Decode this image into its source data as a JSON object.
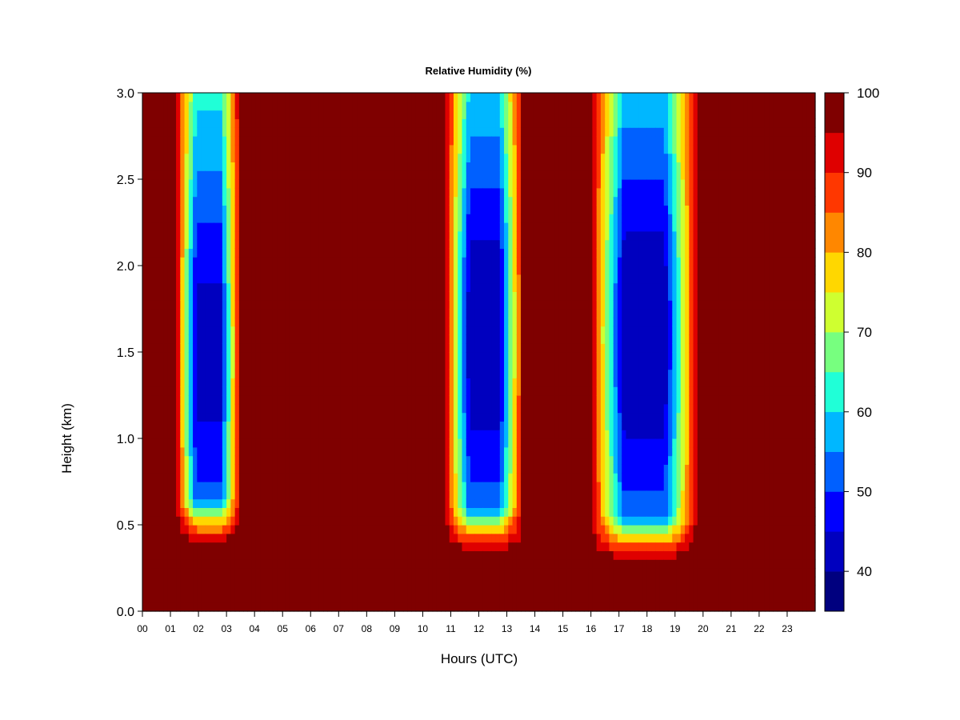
{
  "chart_data": {
    "type": "heatmap",
    "title": "Relative Humidity (%)",
    "xlabel": "Hours (UTC)",
    "ylabel": "Height (km)",
    "xlim": [
      0,
      24
    ],
    "ylim": [
      0.0,
      3.0
    ],
    "x_ticks": [
      "00",
      "01",
      "02",
      "03",
      "04",
      "05",
      "06",
      "07",
      "08",
      "09",
      "10",
      "11",
      "12",
      "13",
      "14",
      "15",
      "16",
      "17",
      "18",
      "19",
      "20",
      "21",
      "22",
      "23"
    ],
    "y_ticks": [
      "0.0",
      "0.5",
      "1.0",
      "1.5",
      "2.0",
      "2.5",
      "3.0"
    ],
    "colorbar": {
      "label_values": [
        "40",
        "50",
        "60",
        "70",
        "80",
        "90",
        "100"
      ],
      "levels": [
        35,
        40,
        45,
        50,
        55,
        60,
        65,
        70,
        75,
        80,
        85,
        90,
        95,
        100
      ],
      "colors": [
        "#00007f",
        "#0000bf",
        "#0000ff",
        "#0060ff",
        "#00b7ff",
        "#20ffd7",
        "#77ff7f",
        "#cfff30",
        "#ffd700",
        "#ff8700",
        "#ff3700",
        "#df0000",
        "#7f0000"
      ]
    },
    "background_value": 98,
    "dry_bands": [
      {
        "start": 1.2,
        "end": 3.5,
        "top": 3.0,
        "bottom": 0.4,
        "min_rh": 43,
        "min_height": 1.5
      },
      {
        "start": 10.8,
        "end": 13.6,
        "top": 3.0,
        "bottom": 0.35,
        "min_rh": 41,
        "min_height": 1.6
      },
      {
        "start": 16.0,
        "end": 19.8,
        "top": 3.0,
        "bottom": 0.3,
        "min_rh": 40,
        "min_height": 1.6
      }
    ]
  }
}
